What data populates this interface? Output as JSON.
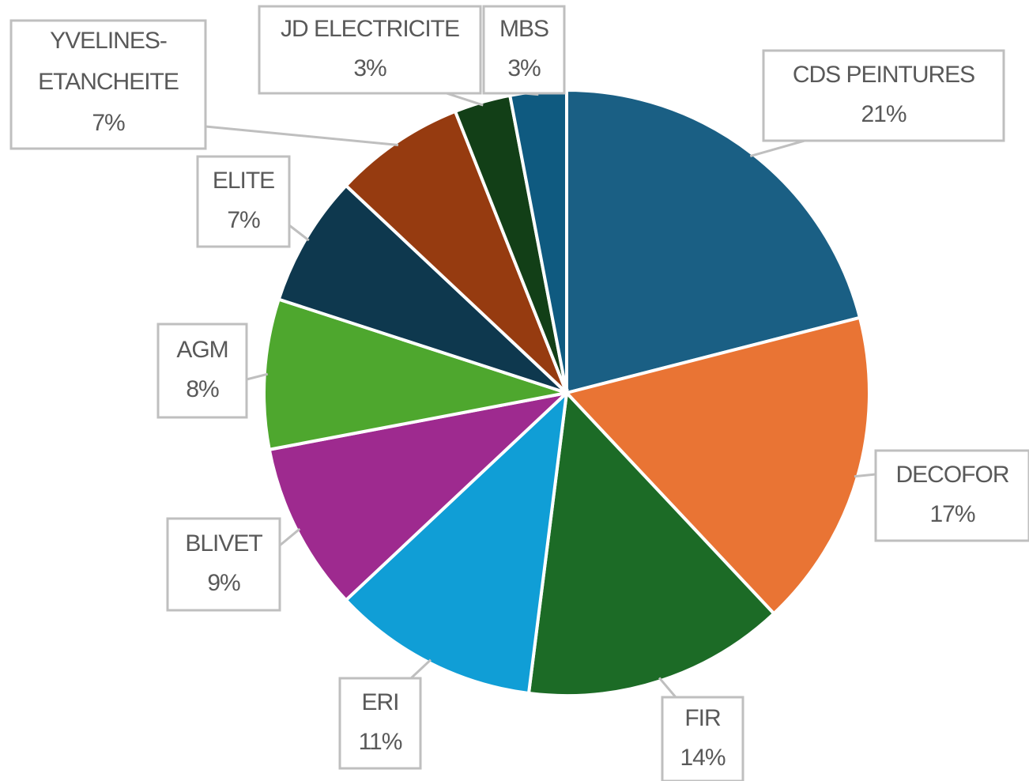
{
  "chart_data": {
    "type": "pie",
    "categories": [
      "CDS PEINTURES",
      "DECOFOR",
      "FIR",
      "ERI",
      "BLIVET",
      "AGM",
      "ELITE",
      "YVELINES-ETANCHEITE",
      "JD ELECTRICITE",
      "MBS"
    ],
    "values": [
      21,
      17,
      14,
      11,
      9,
      8,
      7,
      7,
      3,
      3
    ],
    "value_labels": [
      "21%",
      "17%",
      "14%",
      "11%",
      "9%",
      "8%",
      "7%",
      "7%",
      "3%",
      "3%"
    ],
    "colors": [
      "#1a5f84",
      "#e97434",
      "#1c6b26",
      "#109ed6",
      "#9e2a8f",
      "#4ea72e",
      "#0e384e",
      "#963b10",
      "#123f17",
      "#0f5a80"
    ]
  }
}
